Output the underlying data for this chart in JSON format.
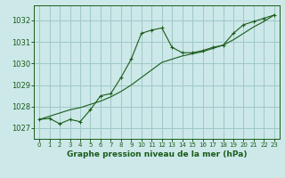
{
  "title": "Graphe pression niveau de la mer (hPa)",
  "bg_color": "#cce8e8",
  "grid_color": "#a0c8c8",
  "line_color": "#1a5c1a",
  "xlim": [
    -0.5,
    23.5
  ],
  "ylim": [
    1026.5,
    1032.7
  ],
  "yticks": [
    1027,
    1028,
    1029,
    1030,
    1031,
    1032
  ],
  "xticks": [
    0,
    1,
    2,
    3,
    4,
    5,
    6,
    7,
    8,
    9,
    10,
    11,
    12,
    13,
    14,
    15,
    16,
    17,
    18,
    19,
    20,
    21,
    22,
    23
  ],
  "series1_x": [
    0,
    1,
    2,
    3,
    4,
    5,
    6,
    7,
    8,
    9,
    10,
    11,
    12,
    13,
    14,
    15,
    16,
    17,
    18,
    19,
    20,
    21,
    22,
    23
  ],
  "series1_y": [
    1027.4,
    1027.45,
    1027.2,
    1027.4,
    1027.3,
    1027.85,
    1028.5,
    1028.6,
    1029.35,
    1030.2,
    1031.4,
    1031.55,
    1031.65,
    1030.75,
    1030.5,
    1030.5,
    1030.6,
    1030.75,
    1030.85,
    1031.4,
    1031.8,
    1031.95,
    1032.1,
    1032.25
  ],
  "smooth_x": [
    0,
    1,
    2,
    3,
    4,
    5,
    6,
    7,
    8,
    9,
    10,
    11,
    12,
    13,
    14,
    15,
    16,
    17,
    18,
    19,
    20,
    21,
    22,
    23
  ],
  "smooth_y": [
    1027.4,
    1027.55,
    1027.7,
    1027.85,
    1027.95,
    1028.1,
    1028.25,
    1028.45,
    1028.7,
    1029.0,
    1029.35,
    1029.7,
    1030.05,
    1030.2,
    1030.35,
    1030.45,
    1030.55,
    1030.7,
    1030.85,
    1031.1,
    1031.4,
    1031.7,
    1031.95,
    1032.25
  ]
}
